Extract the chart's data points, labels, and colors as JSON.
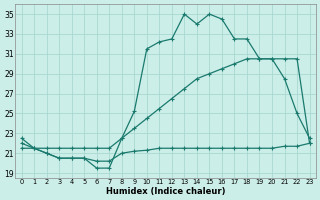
{
  "xlabel": "Humidex (Indice chaleur)",
  "background_color": "#cceee8",
  "grid_color": "#aad8d2",
  "line_color": "#1a7a6e",
  "xlim": [
    -0.5,
    23.5
  ],
  "ylim": [
    18.5,
    36
  ],
  "xticks": [
    0,
    1,
    2,
    3,
    4,
    5,
    6,
    7,
    8,
    9,
    10,
    11,
    12,
    13,
    14,
    15,
    16,
    17,
    18,
    19,
    20,
    21,
    22,
    23
  ],
  "yticks": [
    19,
    21,
    23,
    25,
    27,
    29,
    31,
    33,
    35
  ],
  "series1_x": [
    0,
    1,
    2,
    3,
    4,
    5,
    6,
    7,
    8,
    9,
    10,
    11,
    12,
    13,
    14,
    15,
    16,
    17,
    18,
    19,
    20,
    21,
    22,
    23
  ],
  "series1_y": [
    22.0,
    21.5,
    21.0,
    20.5,
    20.5,
    20.5,
    20.2,
    20.2,
    21.0,
    21.2,
    21.3,
    21.5,
    21.5,
    21.5,
    21.5,
    21.5,
    21.5,
    21.5,
    21.5,
    21.5,
    21.5,
    21.7,
    21.7,
    22.0
  ],
  "series2_x": [
    0,
    1,
    2,
    3,
    4,
    5,
    6,
    7,
    8,
    9,
    10,
    11,
    12,
    13,
    14,
    15,
    16,
    17,
    18,
    19,
    20,
    21,
    22,
    23
  ],
  "series2_y": [
    21.5,
    21.5,
    21.5,
    21.5,
    21.5,
    21.5,
    21.5,
    21.5,
    22.5,
    23.5,
    24.5,
    25.5,
    26.5,
    27.5,
    28.5,
    29.0,
    29.5,
    30.0,
    30.5,
    30.5,
    30.5,
    30.5,
    30.5,
    22.0
  ],
  "series3_x": [
    0,
    1,
    2,
    3,
    4,
    5,
    6,
    7,
    8,
    9,
    10,
    11,
    12,
    13,
    14,
    15,
    16,
    17,
    18,
    19,
    20,
    21,
    22,
    23
  ],
  "series3_y": [
    22.5,
    21.5,
    21.0,
    20.5,
    20.5,
    20.5,
    19.5,
    19.5,
    22.5,
    25.2,
    31.5,
    32.2,
    32.5,
    35.0,
    34.0,
    35.0,
    34.5,
    32.5,
    32.5,
    30.5,
    30.5,
    28.5,
    25.0,
    22.5
  ]
}
